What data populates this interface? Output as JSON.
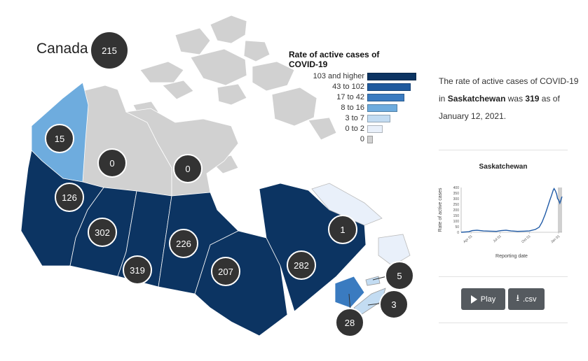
{
  "map": {
    "country_label": "Canada",
    "national_value": "215",
    "colors": {
      "darkest": "#0c3462",
      "dark": "#1f5a9e",
      "medium": "#3a7bc0",
      "light": "#6eacde",
      "lighter": "#c3dcf2",
      "lightest": "#e9f0fa",
      "zero": "#d1d1d1"
    },
    "regions": [
      {
        "name": "British Columbia",
        "value": "126"
      },
      {
        "name": "Alberta",
        "value": "302"
      },
      {
        "name": "Saskatchewan",
        "value": "319"
      },
      {
        "name": "Manitoba",
        "value": "226"
      },
      {
        "name": "Ontario",
        "value": "207"
      },
      {
        "name": "Quebec",
        "value": "282"
      },
      {
        "name": "Yukon",
        "value": "15"
      },
      {
        "name": "Northwest Territories",
        "value": "0"
      },
      {
        "name": "Nunavut",
        "value": "0"
      },
      {
        "name": "Newfoundland and Labrador",
        "value": "1"
      },
      {
        "name": "Prince Edward Island",
        "value": "5"
      },
      {
        "name": "Nova Scotia",
        "value": "3"
      },
      {
        "name": "New Brunswick",
        "value": "28"
      }
    ]
  },
  "legend": {
    "title": "Rate of active cases of COVID-19",
    "items": [
      {
        "label": "103 and higher",
        "color": "#0c3462",
        "frac": 1.0
      },
      {
        "label": "43 to 102",
        "color": "#1f5a9e",
        "frac": 0.88
      },
      {
        "label": "17 to 42",
        "color": "#3a7bc0",
        "frac": 0.76
      },
      {
        "label": "8 to 16",
        "color": "#6eacde",
        "frac": 0.62
      },
      {
        "label": "3 to 7",
        "color": "#c3dcf2",
        "frac": 0.47
      },
      {
        "label": "0 to 2",
        "color": "#e9f0fa",
        "frac": 0.32
      },
      {
        "label": "0",
        "color": "#d1d1d1",
        "frac": 0.12
      }
    ]
  },
  "description": {
    "prefix": "The rate of active cases of COVID-19 in ",
    "province": "Saskatchewan",
    "middle": " was ",
    "value": "319",
    "suffix": " as of January 12, 2021."
  },
  "mini_chart": {
    "title": "Saskatchewan",
    "ylabel": "Rate of active cases",
    "xlabel": "Reporting date",
    "x_ticks": [
      "Apr 01",
      "Jul 01",
      "Oct 01",
      "Jan 01"
    ],
    "y_ticks": [
      "0",
      "50",
      "100",
      "150",
      "200",
      "250",
      "300",
      "350",
      "400"
    ],
    "ylim": [
      0,
      400
    ],
    "line_color": "#1f5aa6"
  },
  "chart_data": {
    "type": "line",
    "title": "Saskatchewan",
    "xlabel": "Reporting date",
    "ylabel": "Rate of active cases",
    "ylim": [
      0,
      400
    ],
    "x_range": [
      "2020-03-01",
      "2021-01-12"
    ],
    "series": [
      {
        "points": [
          [
            "2020-03-01",
            0
          ],
          [
            "2020-03-25",
            5
          ],
          [
            "2020-04-05",
            15
          ],
          [
            "2020-04-20",
            18
          ],
          [
            "2020-05-10",
            12
          ],
          [
            "2020-06-01",
            10
          ],
          [
            "2020-06-20",
            8
          ],
          [
            "2020-07-05",
            15
          ],
          [
            "2020-07-20",
            18
          ],
          [
            "2020-08-05",
            12
          ],
          [
            "2020-08-25",
            8
          ],
          [
            "2020-09-15",
            10
          ],
          [
            "2020-10-01",
            12
          ],
          [
            "2020-10-20",
            25
          ],
          [
            "2020-11-01",
            45
          ],
          [
            "2020-11-10",
            90
          ],
          [
            "2020-11-20",
            160
          ],
          [
            "2020-11-28",
            230
          ],
          [
            "2020-12-05",
            290
          ],
          [
            "2020-12-10",
            330
          ],
          [
            "2020-12-15",
            375
          ],
          [
            "2020-12-18",
            390
          ],
          [
            "2020-12-22",
            370
          ],
          [
            "2020-12-26",
            340
          ],
          [
            "2020-12-29",
            300
          ],
          [
            "2021-01-01",
            290
          ],
          [
            "2021-01-05",
            260
          ],
          [
            "2021-01-08",
            285
          ],
          [
            "2021-01-10",
            305
          ],
          [
            "2021-01-12",
            319
          ]
        ]
      }
    ]
  },
  "buttons": {
    "play_label": "Play",
    "csv_label": ".csv"
  }
}
